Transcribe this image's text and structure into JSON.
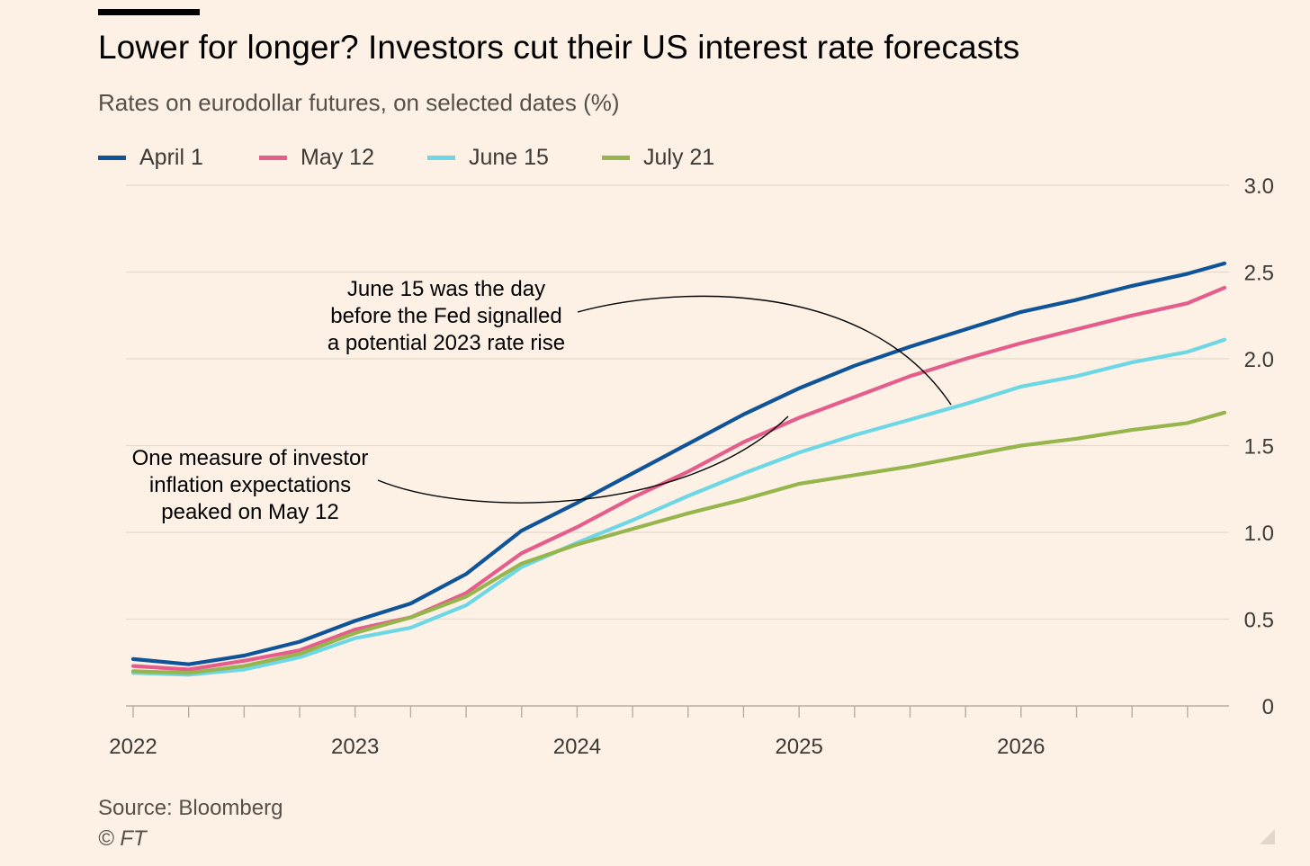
{
  "title": "Lower for longer? Investors cut their US interest rate forecasts",
  "subtitle": "Rates on eurodollar futures, on selected dates (%)",
  "source": "Source: Bloomberg",
  "copyright": "© FT",
  "colors": {
    "background": "#fdf1e5",
    "grid": "#e6d9cc",
    "axis_text": "#3d3a35",
    "annotation": "#000000"
  },
  "legend": [
    {
      "label": "April 1",
      "color": "#0f5499"
    },
    {
      "label": "May 12",
      "color": "#e55d8d"
    },
    {
      "label": "June 15",
      "color": "#6ed7e5"
    },
    {
      "label": "July 21",
      "color": "#96b54c"
    }
  ],
  "chart_data": {
    "type": "line",
    "title": "Lower for longer? Investors cut their US interest rate forecasts",
    "subtitle": "Rates on eurodollar futures, on selected dates (%)",
    "x_tick_labels": [
      "2022",
      "2023",
      "2024",
      "2025",
      "2026"
    ],
    "y_tick_labels": [
      "0",
      "0.5",
      "1.0",
      "1.5",
      "2.0",
      "2.5",
      "3.0"
    ],
    "ylim": [
      0,
      3.0
    ],
    "y_axis_side": "right",
    "grid": "horizontal",
    "legend_position": "top",
    "x_range": [
      "2022-01",
      "2026-12"
    ],
    "x": [
      "2022-01",
      "2022-04",
      "2022-07",
      "2022-10",
      "2023-01",
      "2023-04",
      "2023-07",
      "2023-10",
      "2024-01",
      "2024-04",
      "2024-07",
      "2024-10",
      "2025-01",
      "2025-04",
      "2025-07",
      "2025-10",
      "2026-01",
      "2026-04",
      "2026-07",
      "2026-10",
      "2026-12"
    ],
    "series": [
      {
        "name": "April 1",
        "color": "#0f5499",
        "values": [
          0.27,
          0.24,
          0.29,
          0.37,
          0.49,
          0.59,
          0.76,
          1.01,
          1.17,
          1.34,
          1.51,
          1.68,
          1.83,
          1.96,
          2.07,
          2.17,
          2.27,
          2.34,
          2.42,
          2.49,
          2.55
        ]
      },
      {
        "name": "May 12",
        "color": "#e55d8d",
        "values": [
          0.23,
          0.21,
          0.26,
          0.32,
          0.44,
          0.51,
          0.65,
          0.88,
          1.03,
          1.2,
          1.35,
          1.52,
          1.66,
          1.78,
          1.9,
          2.0,
          2.09,
          2.17,
          2.25,
          2.32,
          2.41
        ]
      },
      {
        "name": "June 15",
        "color": "#6ed7e5",
        "values": [
          0.19,
          0.18,
          0.21,
          0.28,
          0.39,
          0.45,
          0.58,
          0.8,
          0.94,
          1.07,
          1.21,
          1.34,
          1.46,
          1.56,
          1.65,
          1.74,
          1.84,
          1.9,
          1.98,
          2.04,
          2.11
        ]
      },
      {
        "name": "July 21",
        "color": "#96b54c",
        "values": [
          0.2,
          0.19,
          0.23,
          0.3,
          0.42,
          0.51,
          0.63,
          0.82,
          0.93,
          1.02,
          1.11,
          1.19,
          1.28,
          1.33,
          1.38,
          1.44,
          1.5,
          1.54,
          1.59,
          1.63,
          1.69
        ]
      }
    ],
    "annotations": [
      {
        "lines": [
          "June 15 was the day",
          "before the Fed signalled",
          "a potential 2023 rate rise"
        ],
        "points_to": {
          "x": "2025-08",
          "y": 1.74
        }
      },
      {
        "lines": [
          "One measure of investor",
          "inflation expectations",
          "peaked on May 12"
        ],
        "points_to": {
          "x": "2024-10",
          "y": 1.66
        }
      }
    ]
  }
}
